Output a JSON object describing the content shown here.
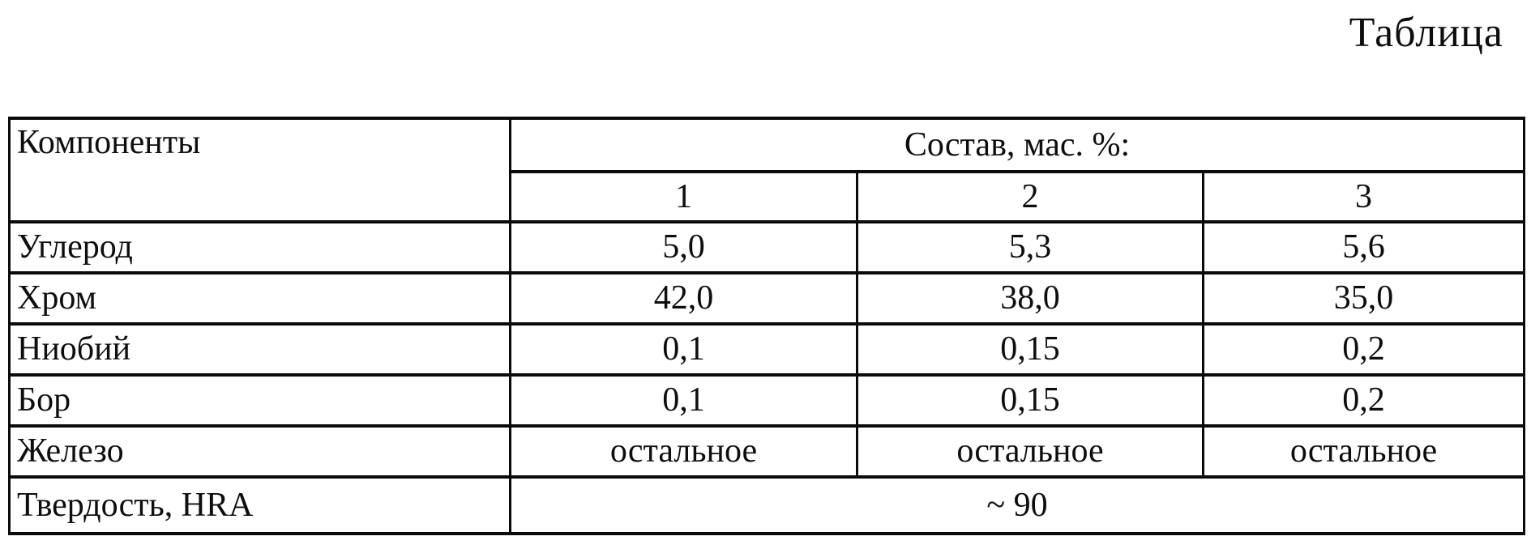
{
  "page": {
    "title": "Таблица",
    "background_color": "#ffffff",
    "text_color": "#0e0e0e",
    "border_color": "#0b0b0b"
  },
  "table": {
    "corner_header": "Компоненты",
    "group_header": "Состав, мас. %:",
    "composition_columns": [
      "1",
      "2",
      "3"
    ],
    "rows": [
      {
        "label": "Углерод",
        "values": [
          "5,0",
          "5,3",
          "5,6"
        ]
      },
      {
        "label": "Хром",
        "values": [
          "42,0",
          "38,0",
          "35,0"
        ]
      },
      {
        "label": "Ниобий",
        "values": [
          "0,1",
          "0,15",
          "0,2"
        ]
      },
      {
        "label": "Бор",
        "values": [
          "0,1",
          "0,15",
          "0,2"
        ]
      },
      {
        "label": "Железо",
        "values": [
          "остальное",
          "остальное",
          "остальное"
        ]
      }
    ],
    "footer_row": {
      "label": "Твердость, HRA",
      "value": "~ 90"
    }
  }
}
